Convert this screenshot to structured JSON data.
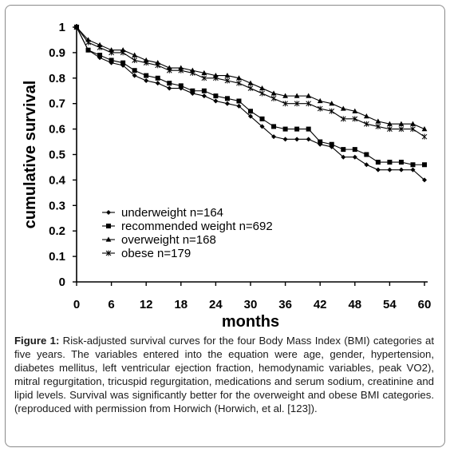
{
  "chart_data": {
    "type": "line",
    "xlabel": "months",
    "ylabel": "cumulative survival",
    "xlim": [
      0,
      60
    ],
    "ylim": [
      0,
      1
    ],
    "xticks": [
      "0",
      "6",
      "12",
      "18",
      "24",
      "30",
      "36",
      "42",
      "48",
      "54",
      "60"
    ],
    "yticks": [
      "0",
      "0.1",
      "0.2",
      "0.3",
      "0.4",
      "0.5",
      "0.6",
      "0.7",
      "0.8",
      "0.9",
      "1"
    ],
    "legend_position": "lower-left",
    "series": [
      {
        "name": "underweight n=164",
        "marker": "diamond",
        "x": [
          0,
          2,
          4,
          6,
          8,
          10,
          12,
          14,
          16,
          18,
          20,
          22,
          24,
          26,
          28,
          30,
          32,
          34,
          36,
          38,
          40,
          42,
          44,
          46,
          48,
          50,
          52,
          54,
          56,
          58,
          60
        ],
        "y": [
          1.0,
          0.91,
          0.88,
          0.86,
          0.85,
          0.81,
          0.79,
          0.78,
          0.76,
          0.76,
          0.74,
          0.73,
          0.71,
          0.7,
          0.69,
          0.65,
          0.61,
          0.57,
          0.56,
          0.56,
          0.56,
          0.54,
          0.53,
          0.49,
          0.49,
          0.46,
          0.44,
          0.44,
          0.44,
          0.44,
          0.4
        ]
      },
      {
        "name": "recommended weight n=692",
        "marker": "square",
        "x": [
          0,
          2,
          4,
          6,
          8,
          10,
          12,
          14,
          16,
          18,
          20,
          22,
          24,
          26,
          28,
          30,
          32,
          34,
          36,
          38,
          40,
          42,
          44,
          46,
          48,
          50,
          52,
          54,
          56,
          58,
          60
        ],
        "y": [
          1.0,
          0.91,
          0.89,
          0.87,
          0.86,
          0.83,
          0.81,
          0.8,
          0.78,
          0.77,
          0.75,
          0.75,
          0.73,
          0.72,
          0.71,
          0.67,
          0.64,
          0.61,
          0.6,
          0.6,
          0.6,
          0.55,
          0.54,
          0.52,
          0.52,
          0.5,
          0.47,
          0.47,
          0.47,
          0.46,
          0.46
        ]
      },
      {
        "name": "overweight n=168",
        "marker": "triangle",
        "x": [
          0,
          2,
          4,
          6,
          8,
          10,
          12,
          14,
          16,
          18,
          20,
          22,
          24,
          26,
          28,
          30,
          32,
          34,
          36,
          38,
          40,
          42,
          44,
          46,
          48,
          50,
          52,
          54,
          56,
          58,
          60
        ],
        "y": [
          1.0,
          0.95,
          0.93,
          0.91,
          0.91,
          0.89,
          0.87,
          0.86,
          0.84,
          0.84,
          0.83,
          0.82,
          0.81,
          0.81,
          0.8,
          0.78,
          0.76,
          0.74,
          0.73,
          0.73,
          0.73,
          0.71,
          0.7,
          0.68,
          0.67,
          0.65,
          0.63,
          0.62,
          0.62,
          0.62,
          0.6
        ]
      },
      {
        "name": "obese n=179",
        "marker": "star",
        "x": [
          0,
          2,
          4,
          6,
          8,
          10,
          12,
          14,
          16,
          18,
          20,
          22,
          24,
          26,
          28,
          30,
          32,
          34,
          36,
          38,
          40,
          42,
          44,
          46,
          48,
          50,
          52,
          54,
          56,
          58,
          60
        ],
        "y": [
          1.0,
          0.94,
          0.92,
          0.9,
          0.9,
          0.87,
          0.86,
          0.85,
          0.83,
          0.83,
          0.82,
          0.8,
          0.8,
          0.79,
          0.78,
          0.76,
          0.74,
          0.72,
          0.7,
          0.7,
          0.7,
          0.68,
          0.67,
          0.64,
          0.64,
          0.62,
          0.61,
          0.6,
          0.6,
          0.6,
          0.57
        ]
      }
    ]
  },
  "caption": {
    "label": "Figure 1:",
    "text": " Risk-adjusted survival curves for the four Body Mass Index (BMI) categories at five years. The variables entered into the equation were age, gender, hypertension, diabetes mellitus, left ventricular ejection fraction, hemodynamic variables, peak VO2), mitral regurgitation, tricuspid regurgitation, medications and serum sodium, creatinine and lipid levels. Survival was significantly better for the overweight and obese BMI categories.(reproduced with permission from Horwich (Horwich, et al. [123])."
  }
}
